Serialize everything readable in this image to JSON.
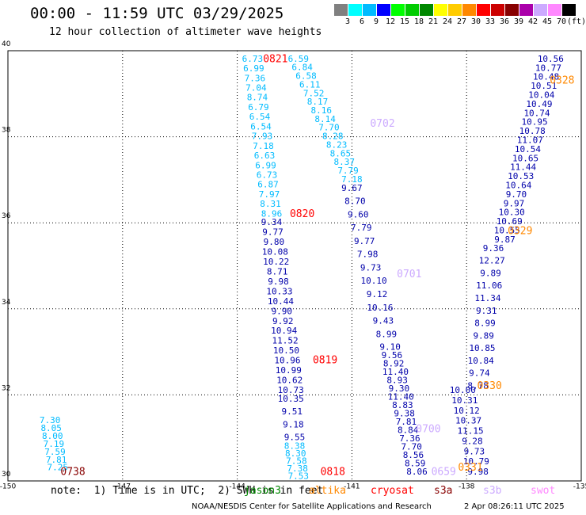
{
  "header": {
    "title": "00:00 - 11:59 UTC 03/29/2025",
    "subtitle": "12 hour collection of altimeter wave heights"
  },
  "legend": {
    "unit": "(ft)",
    "bins": [
      {
        "label": "3",
        "color": "#808080"
      },
      {
        "label": "6",
        "color": "#00ffff"
      },
      {
        "label": "9",
        "color": "#00bbff"
      },
      {
        "label": "12",
        "color": "#0000ff"
      },
      {
        "label": "15",
        "color": "#00ff00"
      },
      {
        "label": "18",
        "color": "#00cc00"
      },
      {
        "label": "21",
        "color": "#008800"
      },
      {
        "label": "24",
        "color": "#ffff00"
      },
      {
        "label": "27",
        "color": "#ffcc00"
      },
      {
        "label": "30",
        "color": "#ff8800"
      },
      {
        "label": "33",
        "color": "#ff0000"
      },
      {
        "label": "36",
        "color": "#cc0000"
      },
      {
        "label": "39",
        "color": "#880000"
      },
      {
        "label": "42",
        "color": "#aa00aa"
      },
      {
        "label": "45",
        "color": "#ccaaff"
      },
      {
        "label": "70",
        "color": "#ff88ff"
      },
      {
        "label": "",
        "color": "#000000"
      }
    ]
  },
  "chart_data": {
    "type": "scatter",
    "xlim": [
      -150,
      -135
    ],
    "ylim": [
      30,
      40
    ],
    "x_ticks": [
      -150,
      -147,
      -144,
      -141,
      -138,
      -135
    ],
    "x_tick_labels": [
      "-150",
      "-147",
      "-144",
      "-141",
      "-138",
      "-135"
    ],
    "y_ticks": [
      30,
      32,
      34,
      36,
      38,
      40
    ],
    "y_tick_labels": [
      "30",
      "32",
      "34",
      "36",
      "38",
      "40"
    ],
    "grid": true,
    "passes": [
      {
        "time": "0738",
        "color": "#880000",
        "lon": -148.3,
        "lat": 30.2
      },
      {
        "time": "0821",
        "color": "#ff0000",
        "lon": -143.0,
        "lat": 39.8
      },
      {
        "time": "0820",
        "color": "#ff0000",
        "lon": -142.3,
        "lat": 36.2
      },
      {
        "time": "0819",
        "color": "#ff0000",
        "lon": -141.7,
        "lat": 32.8
      },
      {
        "time": "0818",
        "color": "#ff0000",
        "lon": -141.5,
        "lat": 30.2
      },
      {
        "time": "0702",
        "color": "#ccaaff",
        "lon": -140.2,
        "lat": 38.3
      },
      {
        "time": "0701",
        "color": "#ccaaff",
        "lon": -139.5,
        "lat": 34.8
      },
      {
        "time": "0700",
        "color": "#ccaaff",
        "lon": -139.0,
        "lat": 31.2
      },
      {
        "time": "0659",
        "color": "#ccaaff",
        "lon": -138.6,
        "lat": 30.2
      },
      {
        "time": "0328",
        "color": "#ff8800",
        "lon": -135.5,
        "lat": 39.3
      },
      {
        "time": "0329",
        "color": "#ff8800",
        "lon": -136.6,
        "lat": 35.8
      },
      {
        "time": "0330",
        "color": "#ff8800",
        "lon": -137.4,
        "lat": 32.2
      },
      {
        "time": "0331",
        "color": "#ff8800",
        "lon": -137.9,
        "lat": 30.3
      }
    ],
    "tracks": [
      {
        "color": "#00bbff",
        "lon_start": -148.9,
        "lon_end": -148.7,
        "lat_start": 31.4,
        "lat_end": 30.3,
        "values": [
          "7.30",
          "8.05",
          "8.00",
          "7.19",
          "7.59",
          "7.81",
          "7.25"
        ]
      },
      {
        "color": "#00bbff",
        "lon_start": -143.6,
        "lon_end": -143.1,
        "lat_start": 39.8,
        "lat_end": 36.2,
        "values": [
          "6.73",
          "6.99",
          "7.36",
          "7.04",
          "8.74",
          "6.79",
          "6.54",
          "6.54",
          "7.93",
          "7.18",
          "6.63",
          "6.99",
          "6.73",
          "6.87",
          "7.97",
          "8.31",
          "8.96"
        ]
      },
      {
        "color": "#0000aa",
        "lon_start": -143.1,
        "lon_end": -142.6,
        "lat_start": 36.0,
        "lat_end": 32.1,
        "values": [
          "9.34",
          "9.77",
          "9.80",
          "10.08",
          "10.22",
          "8.71",
          "9.98",
          "10.33",
          "10.44",
          "9.90",
          "9.92",
          "10.94",
          "11.52",
          "10.50",
          "10.96",
          "10.99",
          "10.62",
          "10.73"
        ]
      },
      {
        "color": "#0000aa",
        "lon_start": -142.6,
        "lon_end": -142.5,
        "lat_start": 31.9,
        "lat_end": 31.0,
        "values": [
          "10.35",
          "9.51",
          "9.18",
          "9.55"
        ]
      },
      {
        "color": "#00bbff",
        "lon_start": -142.5,
        "lon_end": -142.4,
        "lat_start": 30.8,
        "lat_end": 30.1,
        "values": [
          "8.38",
          "8.30",
          "7.58",
          "7.38",
          "7.53"
        ]
      },
      {
        "color": "#00bbff",
        "lon_start": -142.4,
        "lon_end": -141.0,
        "lat_start": 39.8,
        "lat_end": 37.0,
        "values": [
          "6.59",
          "6.84",
          "6.58",
          "6.11",
          "7.52",
          "8.17",
          "8.16",
          "8.14",
          "7.70",
          "8.28",
          "8.23",
          "8.65",
          "8.37",
          "7.79",
          "7.18"
        ]
      },
      {
        "color": "#0000aa",
        "lon_start": -141.0,
        "lon_end": -140.1,
        "lat_start": 36.8,
        "lat_end": 33.4,
        "values": [
          "9.67",
          "8.70",
          "9.60",
          "7.79",
          "9.77",
          "7.98",
          "9.73",
          "10.10",
          "9.12",
          "10.16",
          "9.43",
          "8.99"
        ]
      },
      {
        "color": "#0000aa",
        "lon_start": -140.0,
        "lon_end": -139.3,
        "lat_start": 33.1,
        "lat_end": 30.2,
        "values": [
          "9.10",
          "9.56",
          "8.92",
          "11.40",
          "8.93",
          "9.30",
          "11.40",
          "8.83",
          "9.38",
          "7.81",
          "8.84",
          "7.36",
          "7.70",
          "8.56",
          "8.59",
          "8.06"
        ]
      },
      {
        "color": "#0000aa",
        "lon_start": -138.1,
        "lon_end": -137.7,
        "lat_start": 32.1,
        "lat_end": 30.2,
        "values": [
          "10.00",
          "10.31",
          "10.12",
          "10.37",
          "11.15",
          "9.28",
          "9.73",
          "10.79",
          "9.98"
        ]
      },
      {
        "color": "#0000aa",
        "lon_start": -137.3,
        "lon_end": -137.7,
        "lat_start": 35.4,
        "lat_end": 32.2,
        "values": [
          "9.36",
          "12.27",
          "9.89",
          "11.06",
          "11.34",
          "9.31",
          "8.99",
          "9.89",
          "10.85",
          "10.84",
          "9.74",
          "8.78"
        ]
      },
      {
        "color": "#0000aa",
        "lon_start": -135.8,
        "lon_end": -137.0,
        "lat_start": 39.8,
        "lat_end": 35.6,
        "values": [
          "10.56",
          "10.77",
          "10.48",
          "10.51",
          "10.04",
          "10.49",
          "10.74",
          "10.95",
          "10.78",
          "11.07",
          "10.54",
          "10.65",
          "11.44",
          "10.53",
          "10.64",
          "9.70",
          "9.97",
          "10.30",
          "10.69",
          "10.55",
          "9.87"
        ]
      }
    ]
  },
  "footer": {
    "note": "note:  1) Time is in UTC;  2) SWH is in feet",
    "satellites": [
      {
        "name": "jason3",
        "color": "#008800"
      },
      {
        "name": "altika",
        "color": "#ff8800"
      },
      {
        "name": "cryosat",
        "color": "#ff0000"
      },
      {
        "name": "s3a",
        "color": "#880000"
      },
      {
        "name": "s3b",
        "color": "#ccaaff"
      },
      {
        "name": "swot",
        "color": "#ff88ff"
      }
    ],
    "credit": "NOAA/NESDIS Center for Satellite Applications and Research",
    "timestamp": "2 Apr 08:26:11 UTC 2025"
  }
}
